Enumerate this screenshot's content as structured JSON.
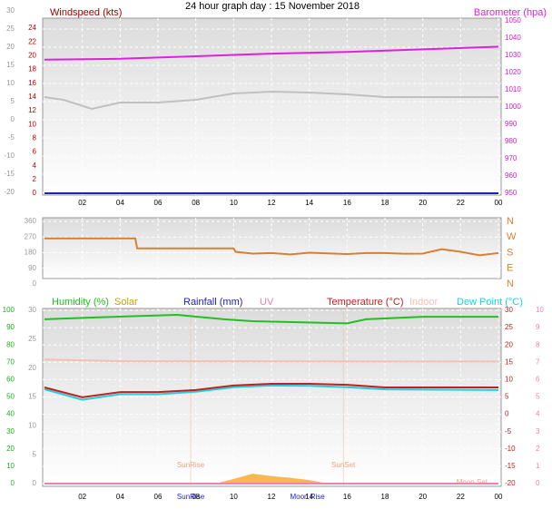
{
  "title": "24 hour graph day : 15 November 2018",
  "chart_data": [
    {
      "type": "line",
      "xlim": [
        0,
        24
      ],
      "xticks": [
        {
          "value": 2,
          "label": "02"
        },
        {
          "value": 4,
          "label": "04"
        },
        {
          "value": 6,
          "label": "06"
        },
        {
          "value": 8,
          "label": "08"
        },
        10,
        12,
        14,
        16,
        18,
        20,
        22,
        {
          "value": 24,
          "label": "00"
        }
      ],
      "ylim": [
        -20,
        30
      ],
      "yticks": [
        30,
        25,
        20,
        15,
        10,
        5,
        0,
        -5,
        -10,
        -15,
        -20
      ],
      "y2lim": [
        0,
        24
      ],
      "y2ticks": [
        24,
        22,
        20,
        18,
        16,
        14,
        12,
        10,
        8,
        6,
        4,
        2,
        0
      ],
      "y3lim": [
        950,
        1050
      ],
      "y3ticks": [
        1050,
        1040,
        1030,
        1020,
        1010,
        1000,
        990,
        980,
        970,
        960,
        950
      ],
      "grid": true,
      "series": [
        {
          "color": "#c0c0c0",
          "axis": "y",
          "x": [
            0,
            1,
            2.5,
            4,
            6,
            8,
            10,
            12,
            14,
            16,
            18,
            20,
            24
          ],
          "values": [
            6.25,
            5.5,
            3,
            4.75,
            4.75,
            5.5,
            7.25,
            7.75,
            7.5,
            7,
            6.25,
            6.25,
            6.25
          ]
        },
        {
          "name": "Barometer (hpa)",
          "color": "#e020e0",
          "axis": "y3",
          "x": [
            0,
            4,
            8,
            12,
            16,
            20,
            24
          ],
          "values": [
            1027.5,
            1028,
            1029.5,
            1031,
            1032,
            1033.5,
            1035
          ]
        },
        {
          "name": "Windspeed (kts)",
          "color": "#2020c0",
          "axis": "y2",
          "x": [
            0,
            24
          ],
          "values": [
            0,
            0
          ]
        }
      ]
    },
    {
      "type": "line",
      "xlim": [
        0,
        24
      ],
      "ylim": [
        0,
        360
      ],
      "yticks": [
        360,
        270,
        180,
        90,
        0
      ],
      "y2lim": [
        0,
        360
      ],
      "y2ticks": [
        {
          "value": 360,
          "label": "N"
        },
        {
          "value": 270,
          "label": "W"
        },
        {
          "value": 180,
          "label": "S"
        },
        {
          "value": 90,
          "label": "E"
        },
        {
          "value": 0,
          "label": "N"
        }
      ],
      "grid": true,
      "series": [
        {
          "color": "#d98030",
          "axis": "y",
          "x": [
            0,
            4.8,
            4.9,
            10,
            10.1,
            11,
            12,
            13,
            14,
            15,
            16,
            17,
            18,
            19,
            20,
            21,
            22,
            23,
            24
          ],
          "values": [
            262,
            262,
            205,
            205,
            185,
            175,
            178,
            170,
            180,
            176,
            172,
            178,
            178,
            174,
            175,
            200,
            185,
            165,
            178
          ]
        }
      ]
    },
    {
      "type": "line",
      "xlim": [
        0,
        24
      ],
      "xticks": [
        {
          "value": 2,
          "label": "02"
        },
        {
          "value": 4,
          "label": "04"
        },
        {
          "value": 6,
          "label": "06"
        },
        {
          "value": 8,
          "label": "08"
        },
        10,
        12,
        14,
        16,
        18,
        20,
        22,
        {
          "value": 24,
          "label": "00"
        }
      ],
      "ylim": [
        0,
        100
      ],
      "yticks": [
        100,
        90,
        80,
        70,
        60,
        50,
        40,
        30,
        20,
        10,
        0
      ],
      "y2lim": [
        0,
        30
      ],
      "y2ticks": [
        30,
        25,
        20,
        15,
        10,
        5,
        0
      ],
      "y3lim": [
        -20,
        30
      ],
      "y3ticks": [
        30,
        25,
        20,
        15,
        10,
        5,
        0,
        -5,
        -10,
        -15,
        -20
      ],
      "y4lim": [
        0,
        10
      ],
      "y4ticks": [
        10,
        9,
        8,
        7,
        6,
        5,
        4,
        3,
        2,
        1,
        0
      ],
      "grid": true,
      "series": [
        {
          "name": "Humidity (%)",
          "color": "#20c020",
          "axis": "y",
          "x": [
            0,
            2.5,
            7,
            9.5,
            11,
            16,
            17,
            20,
            24
          ],
          "values": [
            94.8,
            95.8,
            97.4,
            94.8,
            93.7,
            92.5,
            94.8,
            96.3,
            96.3
          ]
        },
        {
          "name": "Solar",
          "color": "#f5a623",
          "axis": "y2",
          "type": "area",
          "x": [
            9,
            10,
            11,
            12,
            13,
            14,
            15
          ],
          "values": [
            0,
            0.8,
            1.7,
            1.3,
            1,
            0.6,
            0
          ]
        },
        {
          "name": "Rainfall (mm)",
          "color": "#2020c0",
          "axis": "y2",
          "x": [
            0,
            24
          ],
          "values": [
            0,
            0
          ]
        },
        {
          "name": "UV",
          "color": "#f080b0",
          "axis": "y4",
          "x": [
            0,
            24
          ],
          "values": [
            0,
            0
          ]
        },
        {
          "name": "Indoor",
          "color": "#f4c0b0",
          "axis": "y3",
          "x": [
            0,
            4,
            24
          ],
          "values": [
            15.8,
            15.3,
            15.2
          ]
        },
        {
          "name": "Dew Point (°C)",
          "color": "#20d0e0",
          "axis": "y3",
          "x": [
            0,
            2,
            4,
            6,
            8,
            10,
            12,
            14,
            16,
            18,
            24
          ],
          "values": [
            7.2,
            4.2,
            5.8,
            5.8,
            6.5,
            7.8,
            8.3,
            8.2,
            7.8,
            7.2,
            7
          ]
        },
        {
          "name": "Temperature (°C)",
          "color": "#c02020",
          "axis": "y3",
          "x": [
            0,
            2,
            4,
            6,
            8,
            10,
            12,
            14,
            16,
            18,
            24
          ],
          "values": [
            7.75,
            4.9,
            6.4,
            6.4,
            7,
            8.3,
            8.8,
            8.8,
            8.5,
            7.75,
            7.75
          ]
        }
      ],
      "events": [
        {
          "label": "SunRise",
          "x": 7.73
        },
        {
          "label": "SunSet",
          "x": 15.8
        },
        {
          "label": "Moon Rise",
          "x": 13.9
        },
        {
          "label": "Moon Set",
          "x": 22.6
        }
      ]
    }
  ]
}
